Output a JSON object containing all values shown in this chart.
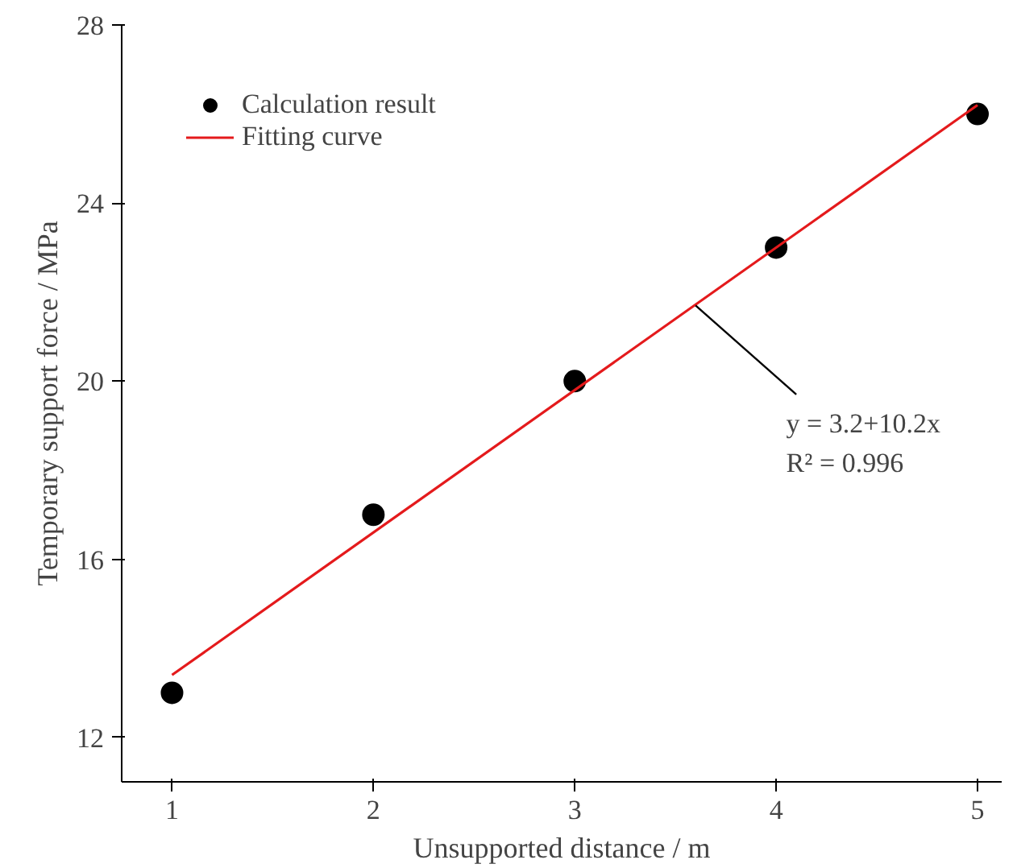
{
  "chart_data": {
    "type": "scatter",
    "xlabel": "Unsupported distance / m",
    "ylabel": "Temporary support force / MPa",
    "x": [
      1,
      2,
      3,
      4,
      5
    ],
    "series": [
      {
        "name": "Calculation result",
        "color": "#000000",
        "values": [
          13,
          17,
          20,
          23,
          26
        ]
      },
      {
        "name": "Fitting curve",
        "color": "#e41a1c",
        "type": "line",
        "marker": "none",
        "x": [
          1,
          5
        ],
        "values": [
          13.4,
          26.2
        ]
      }
    ],
    "annotations": [
      {
        "text": "y = 3.2+10.2x\nR² = 0.996",
        "x": 3.6,
        "y": 21.7
      }
    ],
    "xlim": [
      0.75,
      5.12
    ],
    "ylim": [
      11,
      28
    ],
    "xticks": [
      1,
      2,
      3,
      4,
      5
    ],
    "yticks": [
      12,
      16,
      20,
      24,
      28
    ],
    "grid": false,
    "legend": "top left",
    "marker": "circle",
    "line_style": "solid"
  }
}
